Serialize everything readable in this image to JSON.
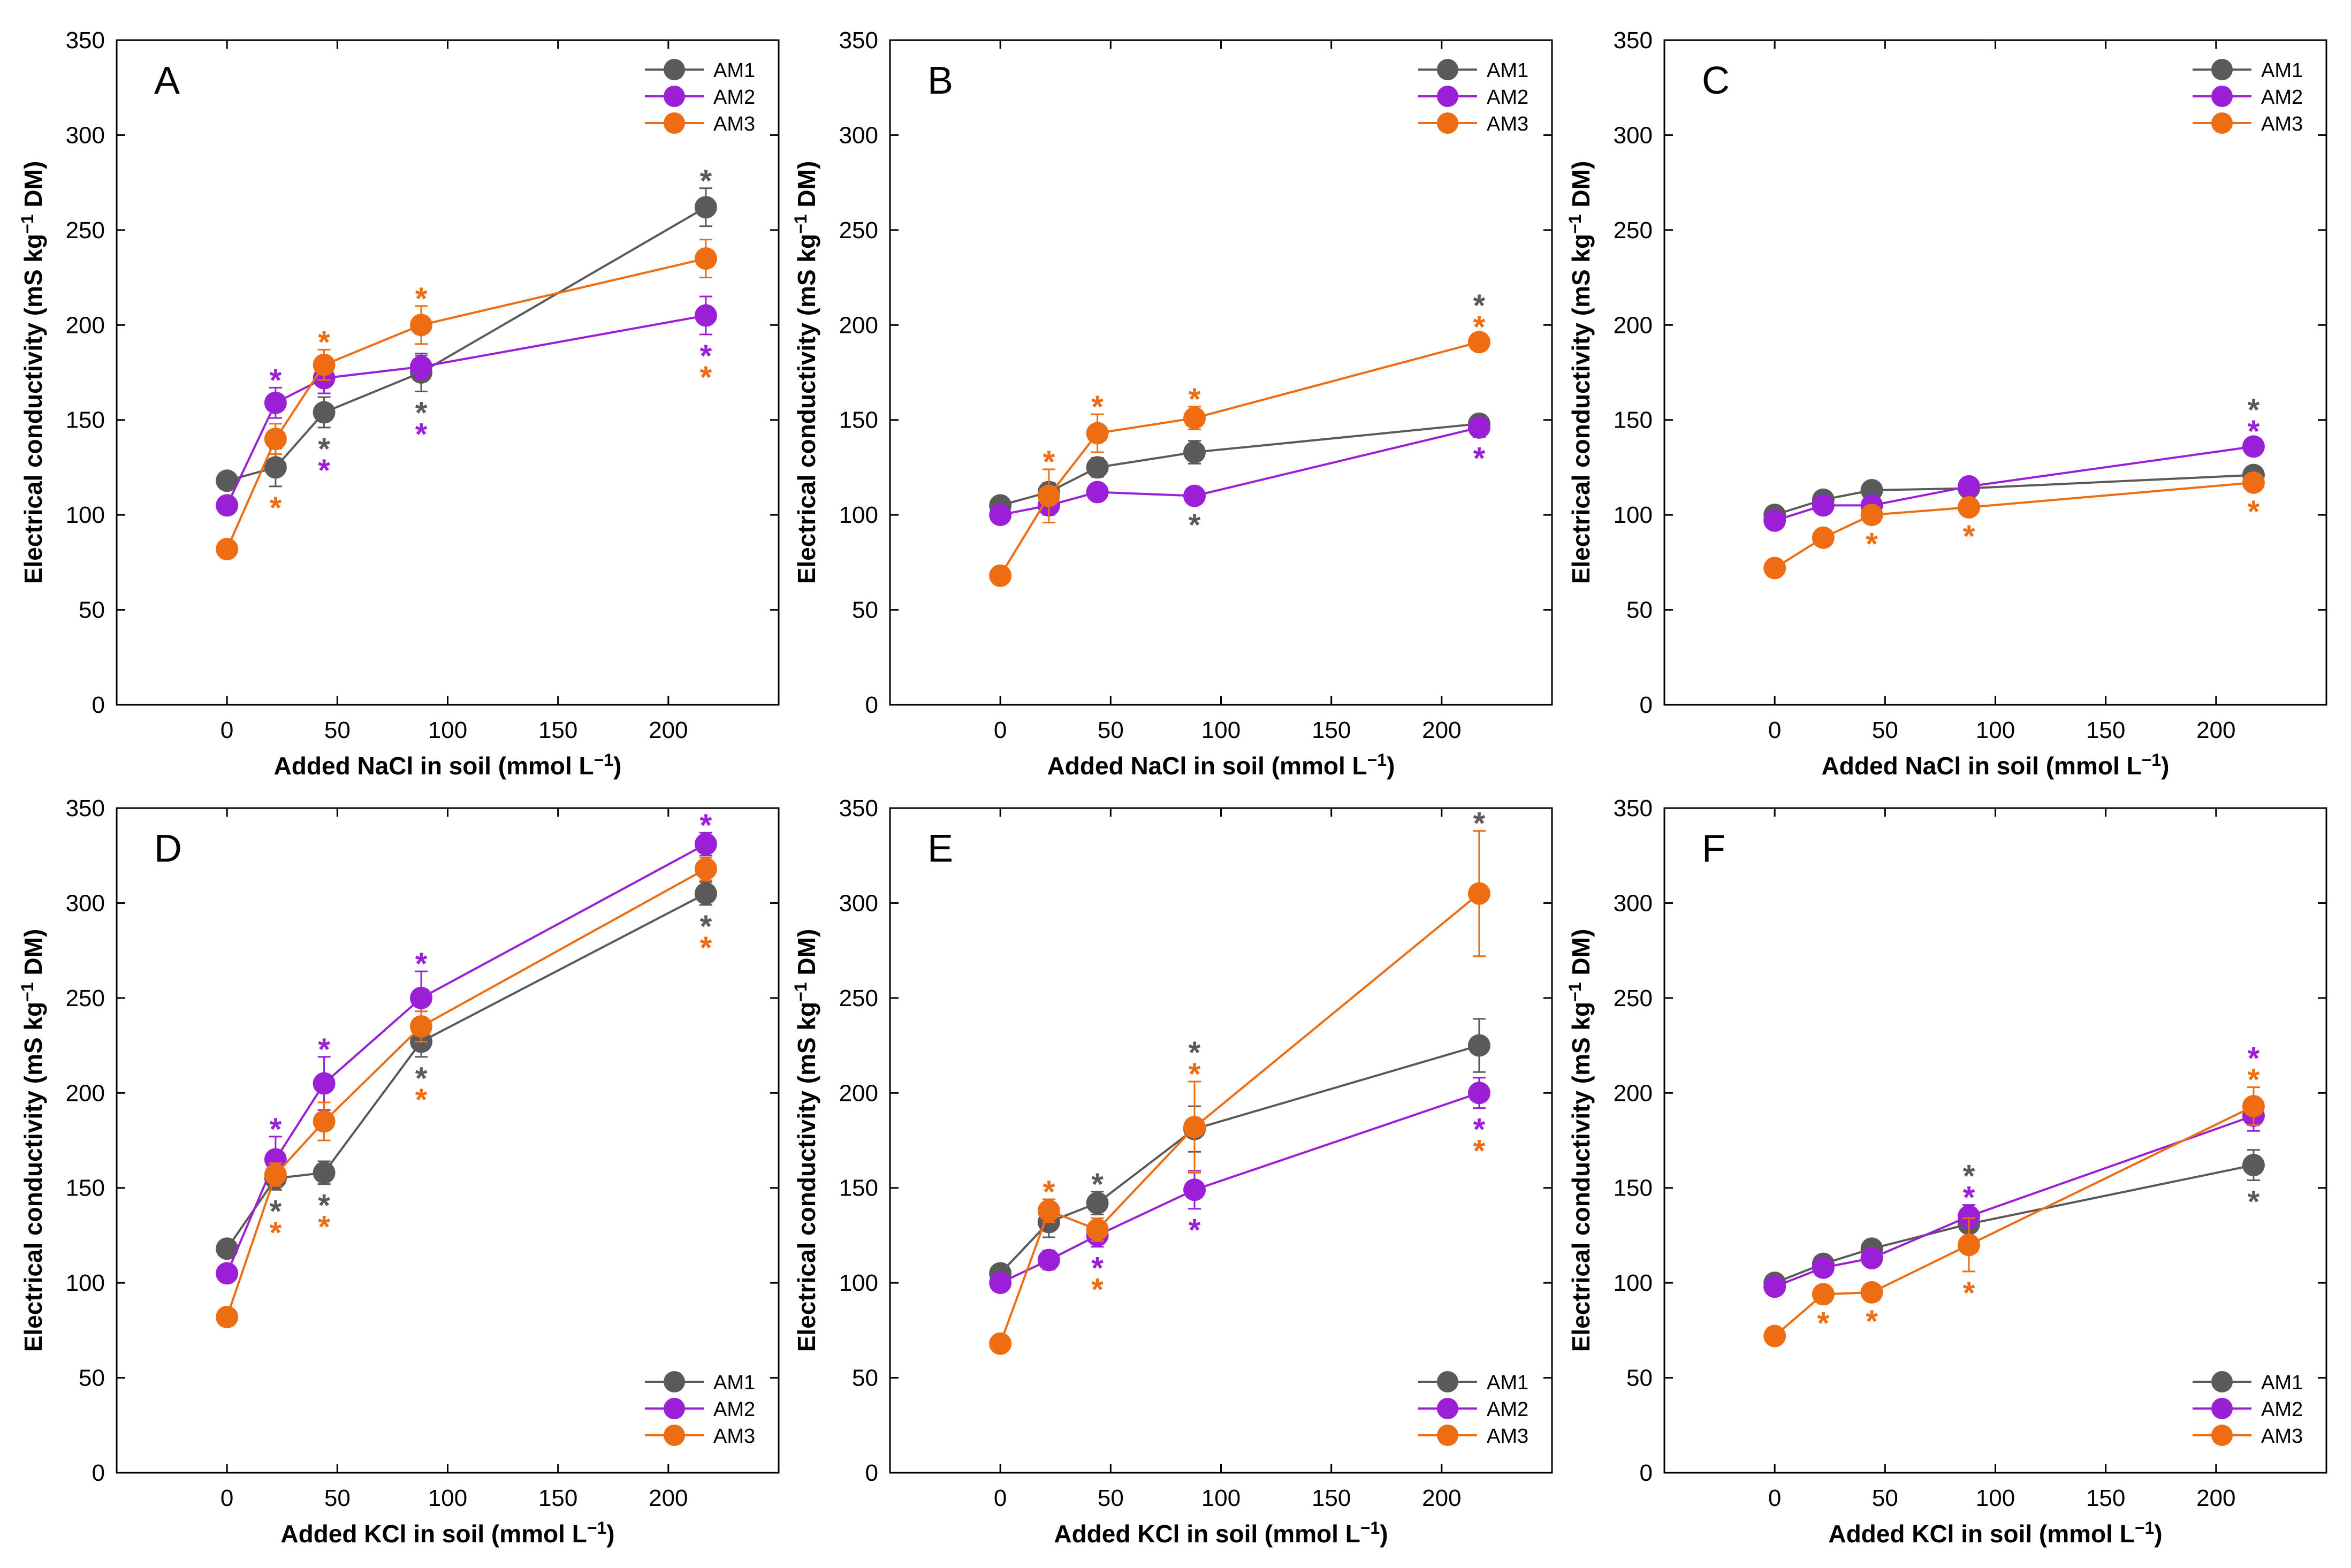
{
  "figure": {
    "colors": {
      "AM1": "#5a5a5a",
      "AM2": "#9b1fd6",
      "AM3": "#ee6c12",
      "axis": "#000000"
    }
  },
  "chart_data": [
    {
      "type": "line",
      "panel": "A",
      "title": "",
      "xlabel": "Added NaCl in soil (mmol L−1)",
      "ylabel": "Electrical conductivity (mS kg−1 DM)",
      "xlim": [
        -50,
        250
      ],
      "ylim": [
        0,
        350
      ],
      "xticks": [
        0,
        50,
        100,
        150,
        200
      ],
      "yticks": [
        0,
        50,
        100,
        150,
        200,
        250,
        300,
        350
      ],
      "legend_position": "top-right",
      "x": [
        0,
        22,
        44,
        88,
        217
      ],
      "series": [
        {
          "name": "AM1",
          "values": [
            118,
            125,
            154,
            175,
            262
          ],
          "errors": [
            0,
            10,
            8,
            10,
            10
          ],
          "stars": [
            false,
            false,
            true,
            true,
            true
          ],
          "star_pos": [
            "",
            "",
            "below",
            "below",
            "above"
          ]
        },
        {
          "name": "AM2",
          "values": [
            105,
            159,
            172,
            178,
            205
          ],
          "errors": [
            0,
            8,
            8,
            6,
            10
          ],
          "stars": [
            false,
            true,
            true,
            true,
            true
          ],
          "star_pos": [
            "",
            "above",
            "below",
            "below",
            "below"
          ]
        },
        {
          "name": "AM3",
          "values": [
            82,
            140,
            179,
            200,
            235
          ],
          "errors": [
            0,
            8,
            8,
            10,
            10
          ],
          "stars": [
            false,
            true,
            true,
            true,
            true
          ],
          "star_pos": [
            "",
            "below",
            "above",
            "above",
            "below"
          ]
        }
      ]
    },
    {
      "type": "line",
      "panel": "B",
      "title": "",
      "xlabel": "Added NaCl in soil (mmol L−1)",
      "ylabel": "Electrical conductivity (mS kg−1 DM)",
      "xlim": [
        -50,
        250
      ],
      "ylim": [
        0,
        350
      ],
      "xticks": [
        0,
        50,
        100,
        150,
        200
      ],
      "yticks": [
        0,
        50,
        100,
        150,
        200,
        250,
        300,
        350
      ],
      "legend_position": "top-right",
      "x": [
        0,
        22,
        44,
        88,
        217
      ],
      "series": [
        {
          "name": "AM1",
          "values": [
            105,
            112,
            125,
            133,
            148
          ],
          "errors": [
            0,
            5,
            5,
            6,
            4
          ],
          "stars": [
            false,
            false,
            false,
            true,
            true
          ],
          "star_pos": [
            "",
            "",
            "",
            "below",
            "above"
          ]
        },
        {
          "name": "AM2",
          "values": [
            100,
            105,
            112,
            110,
            146
          ],
          "errors": [
            0,
            5,
            4,
            4,
            5
          ],
          "stars": [
            false,
            false,
            false,
            false,
            true
          ],
          "star_pos": [
            "",
            "",
            "",
            "",
            "below"
          ]
        },
        {
          "name": "AM3",
          "values": [
            68,
            110,
            143,
            151,
            191
          ],
          "errors": [
            0,
            14,
            10,
            6,
            4
          ],
          "stars": [
            false,
            true,
            true,
            true,
            true
          ],
          "star_pos": [
            "",
            "above",
            "above",
            "above",
            "above"
          ]
        }
      ]
    },
    {
      "type": "line",
      "panel": "C",
      "title": "",
      "xlabel": "Added NaCl in soil (mmol L−1)",
      "ylabel": "Electrical conductivity (mS kg−1 DM)",
      "xlim": [
        -50,
        250
      ],
      "ylim": [
        0,
        350
      ],
      "xticks": [
        0,
        50,
        100,
        150,
        200
      ],
      "yticks": [
        0,
        50,
        100,
        150,
        200,
        250,
        300,
        350
      ],
      "legend_position": "top-right",
      "x": [
        0,
        22,
        44,
        88,
        217
      ],
      "series": [
        {
          "name": "AM1",
          "values": [
            100,
            108,
            113,
            114,
            121
          ],
          "errors": [
            0,
            3,
            3,
            3,
            3
          ],
          "stars": [
            false,
            false,
            false,
            false,
            true
          ],
          "star_pos": [
            "",
            "",
            "",
            "",
            "above"
          ]
        },
        {
          "name": "AM2",
          "values": [
            97,
            105,
            105,
            115,
            136
          ],
          "errors": [
            0,
            3,
            3,
            3,
            4
          ],
          "stars": [
            false,
            false,
            false,
            false,
            true
          ],
          "star_pos": [
            "",
            "",
            "",
            "",
            "above"
          ]
        },
        {
          "name": "AM3",
          "values": [
            72,
            88,
            100,
            104,
            117
          ],
          "errors": [
            0,
            3,
            4,
            4,
            4
          ],
          "stars": [
            false,
            false,
            true,
            true,
            true
          ],
          "star_pos": [
            "",
            "",
            "below",
            "below",
            "below"
          ]
        }
      ]
    },
    {
      "type": "line",
      "panel": "D",
      "title": "",
      "xlabel": "Added KCl in soil (mmol L−1)",
      "ylabel": "Electrical conductivity (mS kg−1 DM)",
      "xlim": [
        -50,
        250
      ],
      "ylim": [
        0,
        350
      ],
      "xticks": [
        0,
        50,
        100,
        150,
        200
      ],
      "yticks": [
        0,
        50,
        100,
        150,
        200,
        250,
        300,
        350
      ],
      "legend_position": "bottom-right",
      "x": [
        0,
        22,
        44,
        88,
        217
      ],
      "series": [
        {
          "name": "AM1",
          "values": [
            118,
            155,
            158,
            227,
            305
          ],
          "errors": [
            0,
            6,
            6,
            8,
            6
          ],
          "stars": [
            false,
            true,
            true,
            true,
            true
          ],
          "star_pos": [
            "",
            "below",
            "below",
            "below",
            "below"
          ]
        },
        {
          "name": "AM2",
          "values": [
            105,
            165,
            205,
            250,
            331
          ],
          "errors": [
            0,
            12,
            14,
            14,
            6
          ],
          "stars": [
            false,
            true,
            true,
            true,
            true
          ],
          "star_pos": [
            "",
            "above",
            "above",
            "above",
            "above"
          ]
        },
        {
          "name": "AM3",
          "values": [
            82,
            157,
            185,
            235,
            318
          ],
          "errors": [
            0,
            6,
            10,
            8,
            6
          ],
          "stars": [
            false,
            true,
            true,
            true,
            true
          ],
          "star_pos": [
            "",
            "below",
            "below",
            "below",
            "below"
          ]
        }
      ]
    },
    {
      "type": "line",
      "panel": "E",
      "title": "",
      "xlabel": "Added KCl in soil (mmol L−1)",
      "ylabel": "Electrical conductivity (mS kg−1 DM)",
      "xlim": [
        -50,
        250
      ],
      "ylim": [
        0,
        350
      ],
      "xticks": [
        0,
        50,
        100,
        150,
        200
      ],
      "yticks": [
        0,
        50,
        100,
        150,
        200,
        250,
        300,
        350
      ],
      "legend_position": "bottom-right",
      "x": [
        0,
        22,
        44,
        88,
        217
      ],
      "series": [
        {
          "name": "AM1",
          "values": [
            105,
            132,
            142,
            181,
            225
          ],
          "errors": [
            0,
            8,
            6,
            12,
            14
          ],
          "stars": [
            false,
            false,
            true,
            true,
            true
          ],
          "star_pos": [
            "",
            "",
            "above",
            "above",
            "above"
          ]
        },
        {
          "name": "AM2",
          "values": [
            100,
            112,
            125,
            149,
            200
          ],
          "errors": [
            0,
            5,
            6,
            10,
            8
          ],
          "stars": [
            false,
            false,
            true,
            true,
            true
          ],
          "star_pos": [
            "",
            "",
            "below",
            "below",
            "below"
          ]
        },
        {
          "name": "AM3",
          "values": [
            68,
            138,
            128,
            182,
            305
          ],
          "errors": [
            0,
            6,
            6,
            24,
            33
          ],
          "stars": [
            false,
            true,
            true,
            true,
            true
          ],
          "star_pos": [
            "",
            "above",
            "below",
            "above",
            "below"
          ]
        }
      ]
    },
    {
      "type": "line",
      "panel": "F",
      "title": "",
      "xlabel": "Added KCl in soil (mmol L−1)",
      "ylabel": "Electrical conductivity (mS kg−1 DM)",
      "xlim": [
        -50,
        250
      ],
      "ylim": [
        0,
        350
      ],
      "xticks": [
        0,
        50,
        100,
        150,
        200
      ],
      "yticks": [
        0,
        50,
        100,
        150,
        200,
        250,
        300,
        350
      ],
      "legend_position": "bottom-right",
      "x": [
        0,
        22,
        44,
        88,
        217
      ],
      "series": [
        {
          "name": "AM1",
          "values": [
            100,
            110,
            118,
            131,
            162
          ],
          "errors": [
            0,
            3,
            3,
            8,
            8
          ],
          "stars": [
            false,
            false,
            false,
            true,
            true
          ],
          "star_pos": [
            "",
            "",
            "",
            "above",
            "below"
          ]
        },
        {
          "name": "AM2",
          "values": [
            98,
            108,
            113,
            135,
            188
          ],
          "errors": [
            0,
            3,
            4,
            6,
            8
          ],
          "stars": [
            false,
            false,
            false,
            true,
            true
          ],
          "star_pos": [
            "",
            "",
            "",
            "above",
            "above"
          ]
        },
        {
          "name": "AM3",
          "values": [
            72,
            94,
            95,
            120,
            193
          ],
          "errors": [
            0,
            4,
            4,
            14,
            10
          ],
          "stars": [
            false,
            true,
            true,
            true,
            true
          ],
          "star_pos": [
            "",
            "below",
            "below",
            "below",
            "above"
          ]
        }
      ]
    }
  ]
}
